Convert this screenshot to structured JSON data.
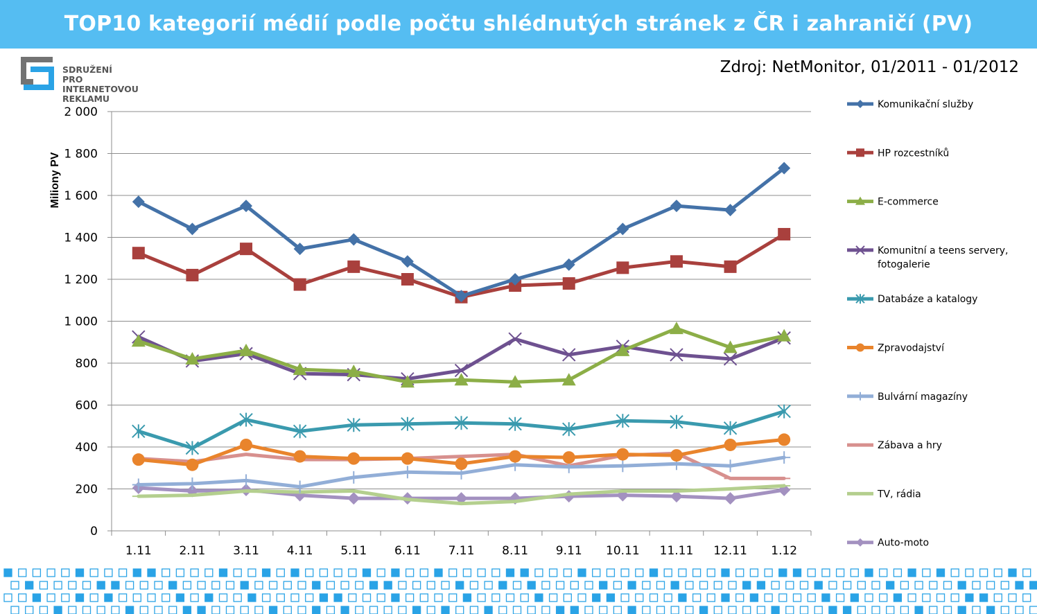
{
  "header": {
    "title": "TOP10 kategorií médií podle počtu shlédnutých stránek z ČR i zahraničí (PV)"
  },
  "logo": {
    "lines": [
      "SDRUŽENÍ",
      "PRO INTERNETOVOU",
      "REKLAMU"
    ]
  },
  "source": "Zdroj: NetMonitor, 01/2011 - 01/2012",
  "colors": {
    "header_bg": "#55bdf2",
    "pattern": "#2aa3e6"
  },
  "chart_data": {
    "type": "line",
    "title": "",
    "xlabel": "",
    "ylabel": "Miliony PV",
    "ylim": [
      0,
      2000
    ],
    "yticks": [
      0,
      200,
      400,
      600,
      800,
      1000,
      1200,
      1400,
      1600,
      1800,
      2000
    ],
    "ytick_labels": [
      "0",
      "200",
      "400",
      "600",
      "800",
      "1 000",
      "1 200",
      "1 400",
      "1 600",
      "1 800",
      "2 000"
    ],
    "grid": "horizontal",
    "legend_position": "right",
    "categories": [
      "1.11",
      "2.11",
      "3.11",
      "4.11",
      "5.11",
      "6.11",
      "7.11",
      "8.11",
      "9.11",
      "10.11",
      "11.11",
      "12.11",
      "1.12"
    ],
    "series": [
      {
        "name": "Komunikační služby",
        "color": "#4472a8",
        "marker": "diamond",
        "values": [
          1570,
          1440,
          1550,
          1345,
          1390,
          1285,
          1120,
          1200,
          1270,
          1440,
          1550,
          1530,
          1730
        ]
      },
      {
        "name": "HP rozcestníků",
        "color": "#a9403d",
        "marker": "square",
        "values": [
          1325,
          1220,
          1345,
          1175,
          1260,
          1200,
          1115,
          1170,
          1180,
          1255,
          1285,
          1260,
          1415
        ]
      },
      {
        "name": "E-commerce",
        "color": "#8cae47",
        "marker": "triangle",
        "values": [
          905,
          820,
          860,
          770,
          760,
          710,
          720,
          710,
          720,
          860,
          965,
          875,
          930
        ]
      },
      {
        "name": "Komunitní a teens servery, fotogalerie",
        "color": "#6e5190",
        "marker": "x",
        "values": [
          925,
          810,
          845,
          750,
          745,
          725,
          765,
          915,
          840,
          880,
          840,
          820,
          920
        ]
      },
      {
        "name": "Databáze a katalogy",
        "color": "#3a9aae",
        "marker": "star",
        "values": [
          475,
          395,
          530,
          475,
          505,
          510,
          515,
          510,
          485,
          525,
          520,
          490,
          570
        ]
      },
      {
        "name": "Zpravodajství",
        "color": "#e9842c",
        "marker": "circle",
        "values": [
          340,
          315,
          410,
          355,
          345,
          345,
          320,
          355,
          350,
          365,
          360,
          410,
          435
        ]
      },
      {
        "name": "Bulvární magazíny",
        "color": "#92aed7",
        "marker": "plus",
        "values": [
          220,
          225,
          240,
          210,
          255,
          280,
          275,
          315,
          305,
          310,
          320,
          310,
          350
        ]
      },
      {
        "name": "Zábava a hry",
        "color": "#d7908e",
        "marker": "dash",
        "values": [
          345,
          330,
          365,
          340,
          340,
          345,
          355,
          365,
          310,
          360,
          370,
          250,
          250
        ]
      },
      {
        "name": "TV, rádia",
        "color": "#b4cf8e",
        "marker": "dash",
        "values": [
          165,
          170,
          190,
          185,
          190,
          150,
          130,
          140,
          175,
          190,
          190,
          200,
          215
        ]
      },
      {
        "name": "Auto-moto",
        "color": "#a391c0",
        "marker": "diamond",
        "values": [
          205,
          190,
          195,
          170,
          155,
          155,
          155,
          155,
          165,
          170,
          165,
          155,
          195
        ]
      }
    ]
  }
}
